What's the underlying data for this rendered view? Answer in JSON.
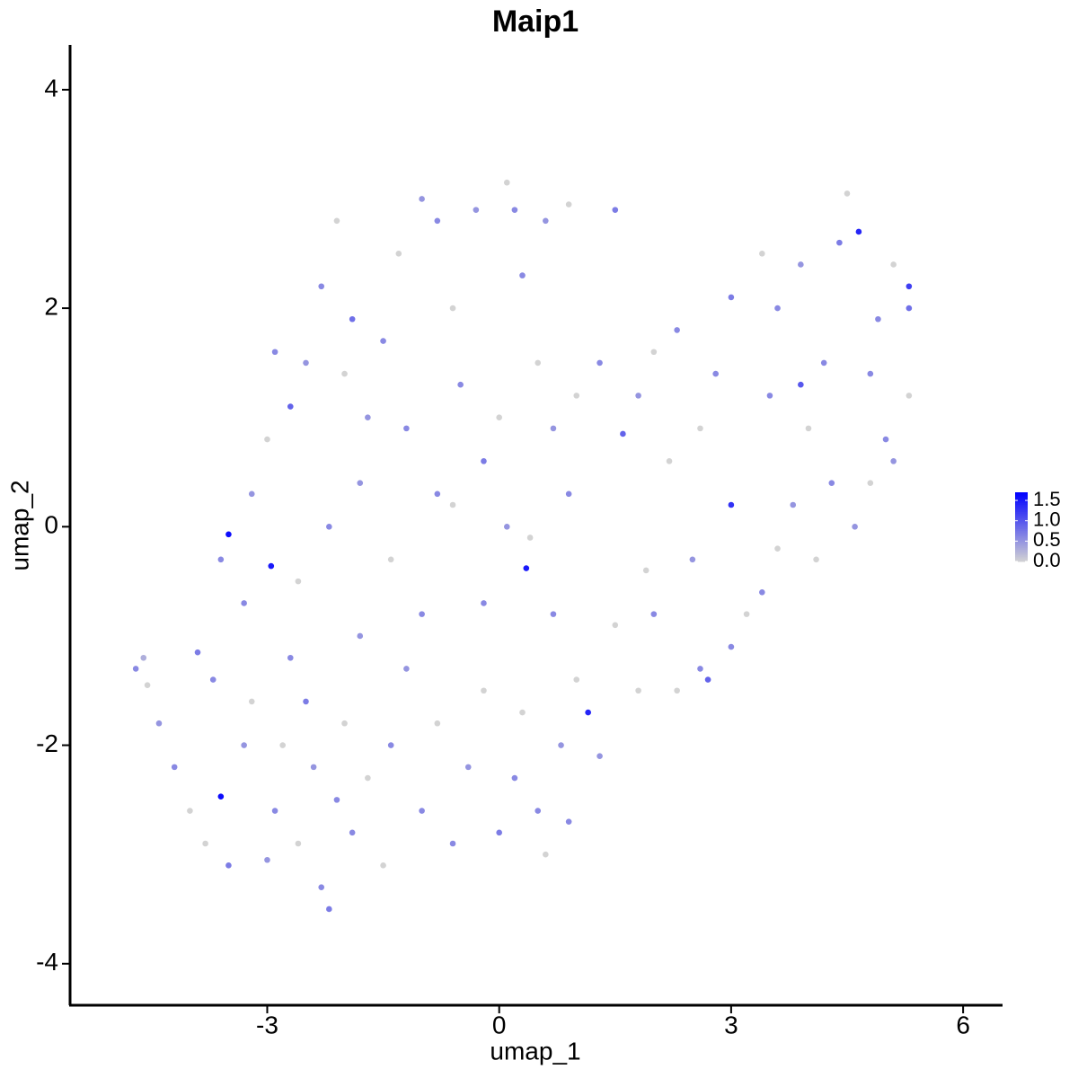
{
  "chart_data": {
    "type": "scatter",
    "title": "Maip1",
    "x_label": "umap_1",
    "y_label": "umap_2",
    "xlim": [
      -5.55,
      6.51
    ],
    "ylim": [
      -4.38,
      4.41
    ],
    "xticks": [
      -3,
      0,
      3,
      6
    ],
    "yticks": [
      -4,
      -2,
      0,
      2,
      4
    ],
    "low_color": "#d3d3d3",
    "high_color": "#0000ff",
    "color_lim": [
      0,
      1.7
    ],
    "color_ticks": [
      {
        "value": 0,
        "label": "0.0"
      },
      {
        "value": 0.5,
        "label": "0.5"
      },
      {
        "value": 1,
        "label": "1.0"
      },
      {
        "value": 1.5,
        "label": "1.5"
      }
    ],
    "x": [
      -4.7,
      -4.6,
      -4.55,
      -4.4,
      -4.2,
      -4.0,
      -3.8,
      -3.9,
      -3.7,
      -3.6,
      -3.5,
      -3.3,
      -3.2,
      -3.0,
      -2.9,
      -2.8,
      -2.7,
      -2.6,
      -2.5,
      -2.4,
      -2.3,
      -2.2,
      -2.1,
      -2.0,
      -1.9,
      -1.8,
      -1.7,
      -1.5,
      -1.4,
      -1.2,
      -1.0,
      -0.8,
      -0.6,
      -0.4,
      -0.2,
      0.0,
      0.2,
      0.3,
      0.5,
      0.6,
      0.8,
      0.9,
      1.0,
      1.15,
      1.3,
      1.5,
      1.8,
      2.0,
      2.3,
      2.6,
      2.7,
      3.0,
      3.2,
      3.4,
      3.6,
      3.8,
      4.1,
      4.3,
      4.6,
      4.8,
      5.0,
      5.1,
      5.3,
      5.3,
      5.3,
      5.1,
      4.9,
      4.65,
      4.5,
      4.4,
      4.2,
      3.9,
      3.6,
      3.4,
      3.0,
      2.8,
      3.0,
      2.6,
      2.3,
      2.0,
      1.8,
      1.6,
      1.3,
      1.0,
      0.9,
      0.35,
      0.1,
      0.0,
      -0.2,
      -0.5,
      -0.6,
      -0.8,
      -1.0,
      -1.3,
      -1.5,
      -1.7,
      -1.9,
      -2.1,
      -2.3,
      -2.5,
      -2.7,
      -2.9,
      -3.0,
      -3.2,
      -3.5,
      -2.95,
      -3.3,
      -3.6,
      -2.6,
      -2.2,
      -1.8,
      -1.4,
      -1.0,
      -0.6,
      -0.2,
      0.4,
      0.7,
      0.2,
      0.6,
      0.9,
      1.5,
      -0.3,
      0.1,
      -2.0,
      -1.2,
      0.5,
      0.3,
      -0.8,
      0.7,
      2.2,
      2.5,
      1.9,
      3.5,
      4.0,
      4.8,
      3.9
    ],
    "values": [
      -1.3,
      -1.2,
      -1.45,
      -1.8,
      -2.2,
      -2.6,
      -2.9,
      -1.15,
      -1.4,
      -2.47,
      -3.1,
      -2.0,
      -1.6,
      -3.05,
      -2.6,
      -2.0,
      -1.2,
      -2.9,
      -1.6,
      -2.2,
      -3.3,
      -3.5,
      -2.5,
      -1.8,
      -2.8,
      -1.0,
      -2.3,
      -3.1,
      -2.0,
      -1.3,
      -2.6,
      -1.8,
      -2.9,
      -2.2,
      -1.5,
      -2.8,
      -2.3,
      -1.7,
      -2.6,
      -3.0,
      -2.0,
      -2.7,
      -1.4,
      -1.7,
      -2.1,
      -0.9,
      -1.5,
      -0.8,
      -1.5,
      -1.3,
      -1.4,
      -1.1,
      -0.8,
      -0.6,
      -0.2,
      0.2,
      -0.3,
      0.4,
      0.0,
      0.4,
      0.8,
      0.6,
      1.2,
      2.0,
      2.2,
      2.4,
      1.9,
      2.7,
      3.05,
      2.6,
      1.5,
      1.3,
      2.0,
      2.5,
      2.1,
      1.4,
      0.2,
      0.9,
      1.8,
      1.6,
      1.2,
      0.85,
      1.5,
      1.2,
      0.3,
      -0.38,
      0.0,
      1.0,
      0.6,
      1.3,
      2.0,
      2.8,
      3.0,
      2.5,
      1.7,
      1.0,
      1.9,
      2.8,
      2.2,
      1.5,
      1.1,
      1.6,
      0.8,
      0.3,
      -0.07,
      -0.36,
      -0.7,
      -0.3,
      -0.5,
      0.0,
      0.4,
      -0.3,
      -0.8,
      0.2,
      -0.7,
      -0.1,
      -0.8,
      2.9,
      2.8,
      2.95,
      2.9,
      2.9,
      3.15,
      1.4,
      0.9,
      1.5,
      2.3,
      0.3,
      0.9,
      0.6,
      -0.3,
      -0.4,
      1.2,
      0.9,
      1.4,
      2.4
    ],
    "expression": [
      0.6,
      0.3,
      0,
      0.5,
      0.6,
      0,
      0,
      0.7,
      0.6,
      1.6,
      0.7,
      0.5,
      0,
      0.5,
      0.6,
      0,
      0.6,
      0,
      0.7,
      0.5,
      0.6,
      0.7,
      0.6,
      0,
      0.6,
      0.5,
      0,
      0,
      0.6,
      0.5,
      0.6,
      0,
      0.6,
      0.5,
      0,
      0.7,
      0.6,
      0,
      0.6,
      0,
      0.5,
      0.6,
      0,
      1.4,
      0.5,
      0,
      0,
      0.6,
      0,
      0.6,
      0.9,
      0.6,
      0,
      0.6,
      0,
      0.5,
      0,
      0.6,
      0.5,
      0,
      0.6,
      0.5,
      0,
      0.8,
      1.2,
      0,
      0.6,
      1.4,
      0,
      0.7,
      0.6,
      1.0,
      0.6,
      0,
      0.7,
      0.6,
      1.3,
      0,
      0.6,
      0,
      0.5,
      0.9,
      0.6,
      0,
      0.6,
      1.5,
      0.5,
      0,
      0.7,
      0.6,
      0,
      0.6,
      0.5,
      0,
      0.6,
      0.5,
      0.8,
      0,
      0.6,
      0.5,
      0.9,
      0.6,
      0,
      0.5,
      1.6,
      1.5,
      0.6,
      0.6,
      0,
      0.6,
      0.5,
      0,
      0.6,
      0,
      0.6,
      0,
      0.6,
      0.6,
      0.5,
      0,
      0.7,
      0.5,
      0,
      0,
      0.6,
      0,
      0.6,
      0.6,
      0.5,
      0,
      0.5,
      0,
      0.6,
      0,
      0.6,
      0.5
    ]
  }
}
